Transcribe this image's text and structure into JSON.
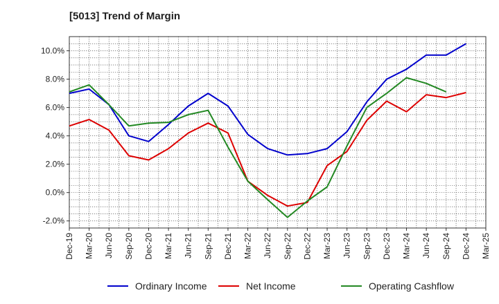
{
  "chart_data": {
    "type": "line",
    "title": "[5013]  Trend of Margin",
    "xlabel": "",
    "ylabel": "",
    "categories": [
      "Dec-19",
      "Mar-20",
      "Jun-20",
      "Sep-20",
      "Dec-20",
      "Mar-21",
      "Jun-21",
      "Sep-21",
      "Dec-21",
      "Mar-22",
      "Jun-22",
      "Sep-22",
      "Dec-22",
      "Mar-23",
      "Jun-23",
      "Sep-23",
      "Dec-23",
      "Mar-24",
      "Jun-24",
      "Sep-24",
      "Dec-24",
      "Mar-25"
    ],
    "ylim": [
      -2.5,
      11.0
    ],
    "yticks": [
      -2.0,
      0.0,
      2.0,
      4.0,
      6.0,
      8.0,
      10.0
    ],
    "ytick_labels": [
      "-2.0%",
      "0.0%",
      "2.0%",
      "4.0%",
      "6.0%",
      "8.0%",
      "10.0%"
    ],
    "grid": true,
    "legend_position": "bottom",
    "series": [
      {
        "name": "Ordinary Income",
        "color": "#0000cc",
        "values": [
          7.0,
          7.3,
          6.2,
          4.0,
          3.6,
          4.8,
          6.1,
          7.0,
          6.1,
          4.1,
          3.1,
          2.65,
          2.75,
          3.1,
          4.3,
          6.4,
          8.0,
          8.7,
          9.7,
          9.7,
          10.5,
          null
        ]
      },
      {
        "name": "Net Income",
        "color": "#dd0000",
        "values": [
          4.7,
          5.15,
          4.4,
          2.6,
          2.3,
          3.1,
          4.2,
          4.9,
          4.2,
          0.8,
          -0.2,
          -0.95,
          -0.7,
          1.9,
          2.9,
          5.1,
          6.45,
          5.7,
          6.9,
          6.7,
          7.05,
          null
        ]
      },
      {
        "name": "Operating Cashflow",
        "color": "#228822",
        "values": [
          7.1,
          7.6,
          6.2,
          4.7,
          4.9,
          4.95,
          5.5,
          5.8,
          3.2,
          0.8,
          -0.5,
          -1.75,
          -0.6,
          0.4,
          3.3,
          6.0,
          7.0,
          8.1,
          7.7,
          7.1,
          null,
          null
        ]
      }
    ]
  }
}
